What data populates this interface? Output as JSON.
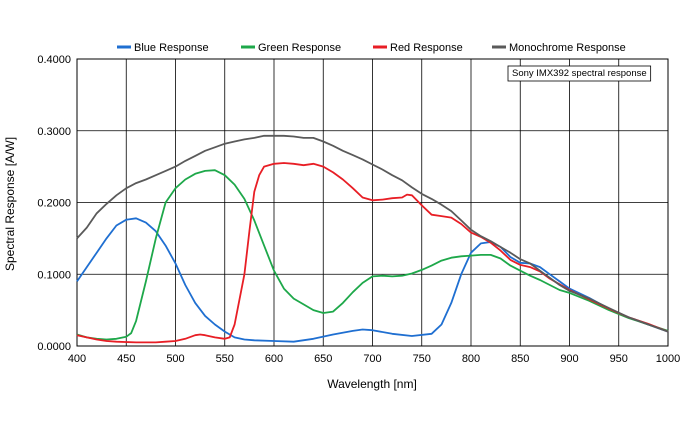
{
  "chart_data": {
    "type": "line",
    "title": "",
    "xlabel": "Wavelength [nm]",
    "ylabel": "Spectral Response [A/W]",
    "xlim": [
      400,
      1000
    ],
    "ylim": [
      0,
      0.4
    ],
    "x_ticks": [
      400,
      450,
      500,
      550,
      600,
      650,
      700,
      750,
      800,
      850,
      900,
      950,
      1000
    ],
    "x_tick_labels": [
      "400",
      "450",
      "500",
      "550",
      "600",
      "650",
      "700",
      "750",
      "800",
      "850",
      "900",
      "950",
      "1000"
    ],
    "y_ticks": [
      0,
      0.1,
      0.2,
      0.3,
      0.4
    ],
    "y_tick_labels": [
      "0.0000",
      "0.1000",
      "0.2000",
      "0.3000",
      "0.4000"
    ],
    "grid": true,
    "legend_position": "top",
    "annotation": "Sony IMX392 spectral response",
    "series": [
      {
        "name": "Blue Response",
        "color": "#1f6fd1",
        "points": [
          [
            400,
            0.09
          ],
          [
            410,
            0.11
          ],
          [
            420,
            0.13
          ],
          [
            430,
            0.15
          ],
          [
            440,
            0.168
          ],
          [
            450,
            0.176
          ],
          [
            460,
            0.178
          ],
          [
            470,
            0.172
          ],
          [
            480,
            0.16
          ],
          [
            490,
            0.14
          ],
          [
            500,
            0.115
          ],
          [
            510,
            0.085
          ],
          [
            520,
            0.06
          ],
          [
            530,
            0.042
          ],
          [
            540,
            0.03
          ],
          [
            550,
            0.02
          ],
          [
            560,
            0.012
          ],
          [
            570,
            0.009
          ],
          [
            580,
            0.008
          ],
          [
            600,
            0.007
          ],
          [
            620,
            0.006
          ],
          [
            640,
            0.01
          ],
          [
            660,
            0.016
          ],
          [
            680,
            0.021
          ],
          [
            690,
            0.023
          ],
          [
            700,
            0.022
          ],
          [
            720,
            0.017
          ],
          [
            740,
            0.014
          ],
          [
            760,
            0.017
          ],
          [
            770,
            0.03
          ],
          [
            780,
            0.06
          ],
          [
            790,
            0.1
          ],
          [
            800,
            0.13
          ],
          [
            810,
            0.143
          ],
          [
            820,
            0.145
          ],
          [
            830,
            0.138
          ],
          [
            840,
            0.124
          ],
          [
            850,
            0.116
          ],
          [
            860,
            0.115
          ],
          [
            870,
            0.11
          ],
          [
            880,
            0.1
          ],
          [
            890,
            0.09
          ],
          [
            900,
            0.08
          ],
          [
            920,
            0.067
          ],
          [
            940,
            0.052
          ],
          [
            960,
            0.04
          ],
          [
            980,
            0.03
          ],
          [
            1000,
            0.02
          ]
        ]
      },
      {
        "name": "Green Response",
        "color": "#1ea84a",
        "points": [
          [
            400,
            0.016
          ],
          [
            410,
            0.012
          ],
          [
            420,
            0.01
          ],
          [
            430,
            0.009
          ],
          [
            440,
            0.01
          ],
          [
            450,
            0.013
          ],
          [
            455,
            0.018
          ],
          [
            460,
            0.035
          ],
          [
            470,
            0.09
          ],
          [
            480,
            0.15
          ],
          [
            490,
            0.2
          ],
          [
            500,
            0.22
          ],
          [
            510,
            0.232
          ],
          [
            520,
            0.24
          ],
          [
            530,
            0.244
          ],
          [
            540,
            0.245
          ],
          [
            550,
            0.238
          ],
          [
            560,
            0.225
          ],
          [
            570,
            0.205
          ],
          [
            580,
            0.175
          ],
          [
            590,
            0.14
          ],
          [
            600,
            0.105
          ],
          [
            610,
            0.08
          ],
          [
            620,
            0.066
          ],
          [
            630,
            0.058
          ],
          [
            640,
            0.05
          ],
          [
            650,
            0.046
          ],
          [
            660,
            0.048
          ],
          [
            670,
            0.06
          ],
          [
            680,
            0.075
          ],
          [
            690,
            0.088
          ],
          [
            700,
            0.097
          ],
          [
            710,
            0.098
          ],
          [
            720,
            0.097
          ],
          [
            730,
            0.098
          ],
          [
            740,
            0.101
          ],
          [
            750,
            0.106
          ],
          [
            760,
            0.112
          ],
          [
            770,
            0.119
          ],
          [
            780,
            0.123
          ],
          [
            790,
            0.125
          ],
          [
            800,
            0.126
          ],
          [
            810,
            0.127
          ],
          [
            820,
            0.127
          ],
          [
            830,
            0.122
          ],
          [
            840,
            0.112
          ],
          [
            850,
            0.105
          ],
          [
            860,
            0.098
          ],
          [
            870,
            0.092
          ],
          [
            880,
            0.085
          ],
          [
            890,
            0.078
          ],
          [
            900,
            0.074
          ],
          [
            920,
            0.063
          ],
          [
            940,
            0.05
          ],
          [
            960,
            0.039
          ],
          [
            980,
            0.03
          ],
          [
            1000,
            0.021
          ]
        ]
      },
      {
        "name": "Red Response",
        "color": "#e81e25",
        "points": [
          [
            400,
            0.015
          ],
          [
            410,
            0.012
          ],
          [
            420,
            0.009
          ],
          [
            430,
            0.007
          ],
          [
            440,
            0.006
          ],
          [
            460,
            0.005
          ],
          [
            480,
            0.005
          ],
          [
            490,
            0.006
          ],
          [
            500,
            0.007
          ],
          [
            510,
            0.01
          ],
          [
            520,
            0.015
          ],
          [
            525,
            0.016
          ],
          [
            530,
            0.015
          ],
          [
            540,
            0.012
          ],
          [
            550,
            0.01
          ],
          [
            555,
            0.012
          ],
          [
            560,
            0.03
          ],
          [
            570,
            0.1
          ],
          [
            575,
            0.16
          ],
          [
            580,
            0.215
          ],
          [
            585,
            0.238
          ],
          [
            590,
            0.25
          ],
          [
            600,
            0.254
          ],
          [
            610,
            0.255
          ],
          [
            620,
            0.254
          ],
          [
            630,
            0.252
          ],
          [
            640,
            0.254
          ],
          [
            650,
            0.25
          ],
          [
            660,
            0.242
          ],
          [
            670,
            0.232
          ],
          [
            680,
            0.22
          ],
          [
            690,
            0.207
          ],
          [
            700,
            0.203
          ],
          [
            710,
            0.204
          ],
          [
            720,
            0.206
          ],
          [
            730,
            0.207
          ],
          [
            735,
            0.211
          ],
          [
            740,
            0.21
          ],
          [
            750,
            0.196
          ],
          [
            760,
            0.183
          ],
          [
            770,
            0.181
          ],
          [
            780,
            0.179
          ],
          [
            790,
            0.17
          ],
          [
            800,
            0.158
          ],
          [
            810,
            0.152
          ],
          [
            820,
            0.144
          ],
          [
            830,
            0.133
          ],
          [
            840,
            0.12
          ],
          [
            850,
            0.113
          ],
          [
            860,
            0.11
          ],
          [
            870,
            0.104
          ],
          [
            880,
            0.094
          ],
          [
            890,
            0.086
          ],
          [
            900,
            0.078
          ],
          [
            920,
            0.065
          ],
          [
            940,
            0.052
          ],
          [
            960,
            0.04
          ],
          [
            980,
            0.031
          ],
          [
            1000,
            0.02
          ]
        ]
      },
      {
        "name": "Monochrome Response",
        "color": "#5a5a5a",
        "points": [
          [
            400,
            0.15
          ],
          [
            410,
            0.165
          ],
          [
            420,
            0.185
          ],
          [
            430,
            0.198
          ],
          [
            440,
            0.21
          ],
          [
            450,
            0.22
          ],
          [
            460,
            0.227
          ],
          [
            470,
            0.232
          ],
          [
            480,
            0.238
          ],
          [
            490,
            0.244
          ],
          [
            500,
            0.25
          ],
          [
            510,
            0.258
          ],
          [
            520,
            0.265
          ],
          [
            530,
            0.272
          ],
          [
            540,
            0.277
          ],
          [
            550,
            0.282
          ],
          [
            560,
            0.285
          ],
          [
            570,
            0.288
          ],
          [
            580,
            0.29
          ],
          [
            590,
            0.293
          ],
          [
            600,
            0.293
          ],
          [
            610,
            0.293
          ],
          [
            620,
            0.292
          ],
          [
            630,
            0.29
          ],
          [
            640,
            0.29
          ],
          [
            650,
            0.285
          ],
          [
            660,
            0.279
          ],
          [
            670,
            0.272
          ],
          [
            680,
            0.266
          ],
          [
            690,
            0.26
          ],
          [
            700,
            0.253
          ],
          [
            710,
            0.246
          ],
          [
            720,
            0.238
          ],
          [
            730,
            0.231
          ],
          [
            740,
            0.221
          ],
          [
            750,
            0.212
          ],
          [
            760,
            0.205
          ],
          [
            770,
            0.197
          ],
          [
            780,
            0.188
          ],
          [
            790,
            0.175
          ],
          [
            800,
            0.162
          ],
          [
            810,
            0.153
          ],
          [
            820,
            0.146
          ],
          [
            830,
            0.138
          ],
          [
            840,
            0.13
          ],
          [
            850,
            0.121
          ],
          [
            860,
            0.115
          ],
          [
            870,
            0.105
          ],
          [
            880,
            0.095
          ],
          [
            890,
            0.085
          ],
          [
            900,
            0.077
          ],
          [
            920,
            0.066
          ],
          [
            940,
            0.053
          ],
          [
            960,
            0.04
          ],
          [
            980,
            0.03
          ],
          [
            1000,
            0.02
          ]
        ]
      }
    ]
  }
}
